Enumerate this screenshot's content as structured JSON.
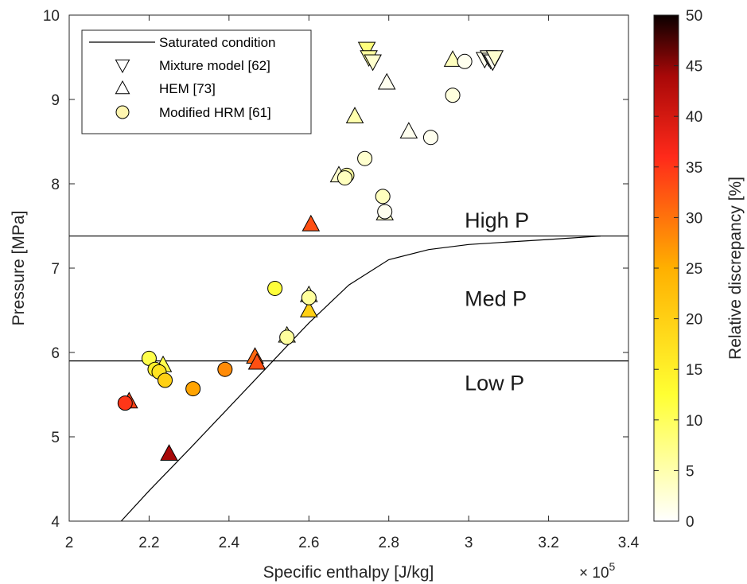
{
  "chart_data": {
    "type": "scatter",
    "xlabel": "Specific enthalpy [J/kg]",
    "ylabel": "Pressure [MPa]",
    "x_multiplier_label": "× 10",
    "x_multiplier_exponent": "5",
    "xlim": [
      2.0,
      3.4
    ],
    "ylim": [
      4,
      10
    ],
    "xticks": [
      "2",
      "2.2",
      "2.4",
      "2.6",
      "2.8",
      "3",
      "3.2",
      "3.4"
    ],
    "yticks": [
      "4",
      "5",
      "6",
      "7",
      "8",
      "9",
      "10"
    ],
    "legend_placement": "top-left",
    "colorbar": {
      "label": "Relative discrepancy [%]",
      "range": [
        0,
        50
      ],
      "ticks": [
        "0",
        "5",
        "10",
        "15",
        "20",
        "25",
        "30",
        "35",
        "40",
        "45",
        "50"
      ],
      "colormap": "hot (reversed)"
    },
    "annotations": [
      {
        "text": "High P",
        "x": 2.99,
        "y": 7.48
      },
      {
        "text": "Med P",
        "x": 2.99,
        "y": 6.55
      },
      {
        "text": "Low P",
        "x": 2.99,
        "y": 5.55
      }
    ],
    "lines": [
      {
        "name": "Saturated condition",
        "x": [
          2.13,
          2.2,
          2.3,
          2.4,
          2.5,
          2.6,
          2.7,
          2.8,
          2.9,
          3.0,
          3.1,
          3.2,
          3.33
        ],
        "y": [
          4.0,
          4.36,
          4.85,
          5.35,
          5.85,
          6.35,
          6.8,
          7.1,
          7.22,
          7.28,
          7.31,
          7.34,
          7.38
        ]
      },
      {
        "name": "High P threshold",
        "x": [
          2.0,
          3.4
        ],
        "y": [
          7.38,
          7.38
        ]
      },
      {
        "name": "Low P threshold",
        "x": [
          2.0,
          3.4
        ],
        "y": [
          5.9,
          5.9
        ]
      }
    ],
    "series": [
      {
        "name": "Mixture model [62]",
        "marker": "triangle-down",
        "x": [
          2.745,
          2.75,
          2.76,
          3.04,
          3.05,
          3.055,
          3.06,
          3.065
        ],
        "y": [
          9.6,
          9.5,
          9.45,
          9.48,
          9.5,
          9.47,
          9.45,
          9.5
        ],
        "discrepancy": [
          8,
          6,
          3,
          1,
          2,
          1,
          1,
          3
        ]
      },
      {
        "name": "HEM [73]",
        "marker": "triangle-up",
        "x": [
          2.96,
          2.795,
          2.715,
          2.85,
          2.675,
          2.79,
          2.605,
          2.6,
          2.6,
          2.545,
          2.465,
          2.47,
          2.235,
          2.15,
          2.25
        ],
        "y": [
          9.47,
          9.2,
          8.8,
          8.62,
          8.1,
          7.65,
          7.52,
          6.68,
          6.5,
          6.2,
          5.95,
          5.88,
          5.85,
          5.42,
          4.8
        ],
        "discrepancy": [
          4,
          1,
          5,
          1,
          3,
          3,
          33,
          4,
          20,
          6,
          31,
          33,
          11,
          34,
          44
        ]
      },
      {
        "name": "Modified HRM [61]",
        "marker": "circle",
        "x": [
          2.96,
          2.99,
          2.905,
          2.74,
          2.695,
          2.69,
          2.785,
          2.79,
          2.6,
          2.515,
          2.545,
          2.2,
          2.215,
          2.225,
          2.24,
          2.39,
          2.31,
          2.14
        ],
        "y": [
          9.05,
          9.45,
          8.55,
          8.3,
          8.1,
          8.07,
          7.85,
          7.67,
          6.65,
          6.76,
          6.18,
          5.93,
          5.8,
          5.77,
          5.67,
          5.8,
          5.57,
          5.4
        ],
        "discrepancy": [
          2,
          1,
          1,
          3,
          6,
          4,
          4,
          1,
          6,
          12,
          6,
          11,
          15,
          17,
          20,
          28,
          26,
          35
        ]
      }
    ]
  },
  "legend": [
    {
      "label": "Saturated condition",
      "symbol": "line"
    },
    {
      "label": "Mixture model [62]",
      "symbol": "triangle-down"
    },
    {
      "label": "HEM [73]",
      "symbol": "triangle-up"
    },
    {
      "label": "Modified HRM [61]",
      "symbol": "circle"
    }
  ]
}
